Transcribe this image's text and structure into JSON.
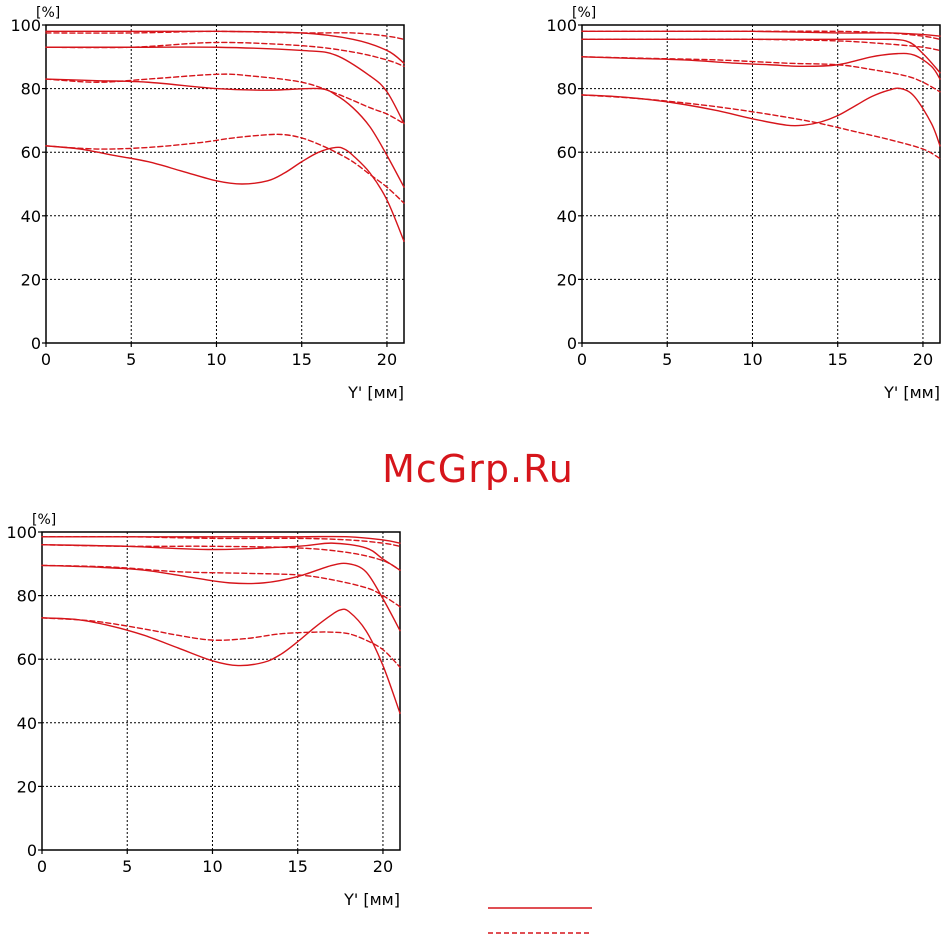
{
  "watermark": "McGrp.Ru",
  "colors": {
    "curve": "#d6151b",
    "grid": "#000000",
    "frame": "#000000"
  },
  "chart_data": [
    {
      "type": "line",
      "x_unit_label": "Y' [мм]",
      "y_unit_label": "[%]",
      "xlim": [
        0,
        21
      ],
      "ylim": [
        0,
        100
      ],
      "x_ticks": [
        0,
        5,
        10,
        15,
        20
      ],
      "y_ticks": [
        0,
        20,
        40,
        60,
        80,
        100
      ],
      "grid": true,
      "series": [
        {
          "style": "solid",
          "x": [
            0,
            5,
            10,
            15,
            18,
            20,
            21
          ],
          "y": [
            98,
            98,
            98,
            97.5,
            95.5,
            92,
            88
          ]
        },
        {
          "style": "dashed",
          "x": [
            0,
            5,
            10,
            15,
            18,
            20,
            21
          ],
          "y": [
            97.5,
            97.5,
            98,
            97.5,
            97.5,
            96.5,
            95.5
          ]
        },
        {
          "style": "solid",
          "x": [
            0,
            5,
            10,
            15,
            17,
            19,
            20,
            21
          ],
          "y": [
            93,
            93,
            93,
            92,
            90.5,
            84,
            79,
            69
          ]
        },
        {
          "style": "dashed",
          "x": [
            0,
            5,
            10,
            15,
            18,
            20,
            21
          ],
          "y": [
            93,
            93,
            94.5,
            93.5,
            91.5,
            89,
            87
          ]
        },
        {
          "style": "solid",
          "x": [
            0,
            3,
            6,
            10,
            13,
            16,
            17,
            18,
            19,
            20,
            21
          ],
          "y": [
            83,
            82.5,
            82,
            80,
            79.5,
            80,
            78,
            74,
            68,
            59,
            49
          ]
        },
        {
          "style": "dashed",
          "x": [
            0,
            3,
            6,
            10,
            12,
            15,
            17,
            19,
            20,
            21
          ],
          "y": [
            83,
            82,
            83,
            84.5,
            84,
            82,
            78.5,
            74,
            72,
            69
          ]
        },
        {
          "style": "solid",
          "x": [
            0,
            2,
            4,
            6,
            8,
            10,
            11.5,
            13,
            14,
            15,
            16,
            17,
            17.5,
            18,
            19,
            20,
            21
          ],
          "y": [
            62,
            61,
            59,
            57,
            54,
            51,
            50,
            51,
            53.5,
            57,
            60,
            61.5,
            61,
            59,
            53.5,
            45,
            32
          ]
        },
        {
          "style": "dashed",
          "x": [
            0,
            3,
            6,
            9,
            11,
            13,
            14,
            15,
            16,
            17,
            18,
            19,
            20,
            21
          ],
          "y": [
            62,
            61,
            61.5,
            63,
            64.5,
            65.5,
            65.5,
            64.5,
            62.5,
            60,
            57,
            53,
            49,
            44
          ]
        }
      ]
    },
    {
      "type": "line",
      "x_unit_label": "Y' [мм]",
      "y_unit_label": "[%]",
      "xlim": [
        0,
        21
      ],
      "ylim": [
        0,
        100
      ],
      "x_ticks": [
        0,
        5,
        10,
        15,
        20
      ],
      "y_ticks": [
        0,
        20,
        40,
        60,
        80,
        100
      ],
      "grid": true,
      "series": [
        {
          "style": "solid",
          "x": [
            0,
            5,
            10,
            15,
            18,
            20,
            21
          ],
          "y": [
            98,
            98,
            98,
            97.5,
            97.5,
            97,
            96.5
          ]
        },
        {
          "style": "dashed",
          "x": [
            0,
            5,
            10,
            15,
            18,
            20,
            21
          ],
          "y": [
            98,
            98,
            98,
            98,
            97.5,
            96.5,
            95.5
          ]
        },
        {
          "style": "solid",
          "x": [
            0,
            5,
            10,
            15,
            17,
            19,
            20,
            21
          ],
          "y": [
            95.5,
            95.5,
            95.5,
            95.5,
            95.5,
            95,
            91,
            85
          ]
        },
        {
          "style": "dashed",
          "x": [
            0,
            5,
            10,
            15,
            18,
            20,
            21
          ],
          "y": [
            95.5,
            95.5,
            95.5,
            95,
            94,
            93,
            92
          ]
        },
        {
          "style": "solid",
          "x": [
            0,
            3,
            6,
            9,
            11,
            13,
            15,
            17,
            18.5,
            19.5,
            20.5,
            21
          ],
          "y": [
            90,
            89.5,
            89,
            88,
            87.5,
            87,
            87.5,
            90,
            91,
            90.5,
            87,
            83
          ]
        },
        {
          "style": "dashed",
          "x": [
            0,
            4,
            8,
            12,
            15,
            17,
            19,
            20,
            21
          ],
          "y": [
            90,
            89.5,
            89,
            88,
            87.5,
            86,
            84,
            82,
            79
          ]
        },
        {
          "style": "solid",
          "x": [
            0,
            2,
            4,
            6,
            8,
            10,
            12,
            13,
            14,
            15,
            16,
            17,
            18,
            18.7,
            19.5,
            20.5,
            21
          ],
          "y": [
            78,
            77.5,
            76.5,
            75,
            73,
            70.5,
            68.5,
            68.5,
            69.5,
            71.5,
            74.5,
            77.5,
            79.5,
            80,
            77.5,
            69,
            62
          ]
        },
        {
          "style": "dashed",
          "x": [
            0,
            3,
            6,
            9,
            12,
            14,
            16,
            18,
            20,
            21
          ],
          "y": [
            78,
            77,
            75.5,
            73.5,
            71,
            69,
            66.5,
            64,
            61,
            58
          ]
        }
      ]
    },
    {
      "type": "line",
      "x_unit_label": "Y' [мм]",
      "y_unit_label": "[%]",
      "xlim": [
        0,
        21
      ],
      "ylim": [
        0,
        100
      ],
      "x_ticks": [
        0,
        5,
        10,
        15,
        20
      ],
      "y_ticks": [
        0,
        20,
        40,
        60,
        80,
        100
      ],
      "grid": true,
      "series": [
        {
          "style": "solid",
          "x": [
            0,
            5,
            10,
            15,
            18,
            20,
            21
          ],
          "y": [
            98.5,
            98.5,
            98.5,
            98.5,
            98.5,
            97.5,
            96.5
          ]
        },
        {
          "style": "dashed",
          "x": [
            0,
            5,
            10,
            15,
            18,
            20,
            21
          ],
          "y": [
            98.5,
            98.5,
            98,
            98,
            97.5,
            96.5,
            95.5
          ]
        },
        {
          "style": "solid",
          "x": [
            0,
            5,
            10,
            15,
            17,
            19,
            20,
            21
          ],
          "y": [
            96,
            95.5,
            94.5,
            95.5,
            96.5,
            95,
            91.5,
            88
          ]
        },
        {
          "style": "dashed",
          "x": [
            0,
            5,
            10,
            15,
            18,
            20,
            21
          ],
          "y": [
            96,
            95.5,
            95.5,
            95,
            93.5,
            91,
            88
          ]
        },
        {
          "style": "solid",
          "x": [
            0,
            3,
            6,
            9,
            11,
            13,
            15,
            17,
            18,
            19,
            20,
            21
          ],
          "y": [
            89.5,
            89,
            88,
            85.5,
            84,
            84,
            86,
            89.5,
            90,
            87.5,
            79,
            69
          ]
        },
        {
          "style": "dashed",
          "x": [
            0,
            4,
            8,
            12,
            15,
            17,
            19,
            20,
            21
          ],
          "y": [
            89.5,
            89,
            87.5,
            87,
            86.5,
            85,
            82.5,
            80,
            76.5
          ]
        },
        {
          "style": "solid",
          "x": [
            0,
            2,
            4,
            6,
            8,
            10,
            11.5,
            13,
            14,
            15,
            16,
            17,
            17.5,
            18,
            19,
            20,
            21
          ],
          "y": [
            73,
            72.5,
            70.5,
            67.5,
            63.5,
            59.5,
            58,
            59,
            61.5,
            65.5,
            70,
            74,
            75.5,
            75,
            69,
            58,
            43
          ]
        },
        {
          "style": "dashed",
          "x": [
            0,
            3,
            6,
            8,
            10,
            12,
            14,
            16,
            17,
            18,
            19,
            20,
            21
          ],
          "y": [
            73,
            72,
            69.5,
            67.5,
            66,
            66.5,
            68,
            68.5,
            68.5,
            68,
            66,
            63,
            57.5
          ]
        }
      ]
    }
  ],
  "legend": {
    "entries": [
      {
        "style": "solid",
        "label": ""
      },
      {
        "style": "dashed",
        "label": ""
      }
    ]
  }
}
